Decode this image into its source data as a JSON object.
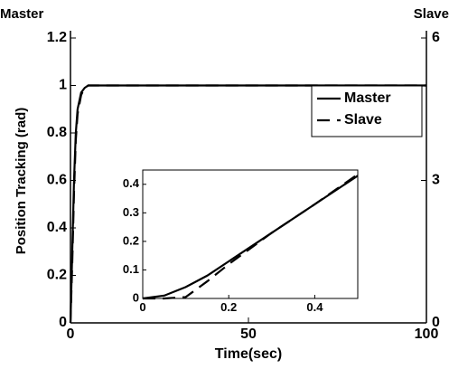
{
  "chart_data": [
    {
      "type": "line",
      "xlabel": "Time(sec)",
      "ylabel": "Position Tracking (rad)",
      "y_axis_title": "Master",
      "y2_axis_title": "Slave",
      "x": [
        0,
        0.5,
        1,
        1.5,
        2,
        3,
        4,
        5,
        100
      ],
      "series": [
        {
          "name": "Master",
          "color": "#000000",
          "style": "solid",
          "values": [
            0,
            0.3,
            0.6,
            0.8,
            0.9,
            0.97,
            0.99,
            1,
            1
          ]
        },
        {
          "name": "Slave",
          "color": "#000000",
          "style": "dashed",
          "values": [
            0,
            0.25,
            0.55,
            0.77,
            0.88,
            0.96,
            0.99,
            1,
            1
          ]
        }
      ],
      "xlim": [
        0,
        100
      ],
      "xticks": [
        0,
        50,
        100
      ],
      "ylim": [
        0,
        1.2
      ],
      "yticks": [
        0,
        0.2,
        0.4,
        0.6,
        0.8,
        1,
        1.2
      ],
      "y2lim": [
        0,
        6
      ],
      "y2ticks": [
        0,
        3,
        6
      ],
      "legend": "upper right"
    },
    {
      "type": "line",
      "x": [
        0,
        0.05,
        0.1,
        0.15,
        0.2,
        0.3,
        0.4,
        0.5
      ],
      "series": [
        {
          "color": "#000000",
          "style": "solid",
          "values": [
            0,
            0.01,
            0.04,
            0.08,
            0.13,
            0.23,
            0.33,
            0.43
          ]
        },
        {
          "color": "#000000",
          "style": "dashed",
          "values": [
            0,
            0,
            0.005,
            0.06,
            0.12,
            0.23,
            0.33,
            0.435
          ]
        }
      ],
      "xlim": [
        0,
        0.5
      ],
      "xticks": [
        0,
        0.2,
        0.4
      ],
      "ylim": [
        0,
        0.45
      ],
      "yticks": [
        0,
        0.1,
        0.2,
        0.3,
        0.4
      ]
    }
  ]
}
